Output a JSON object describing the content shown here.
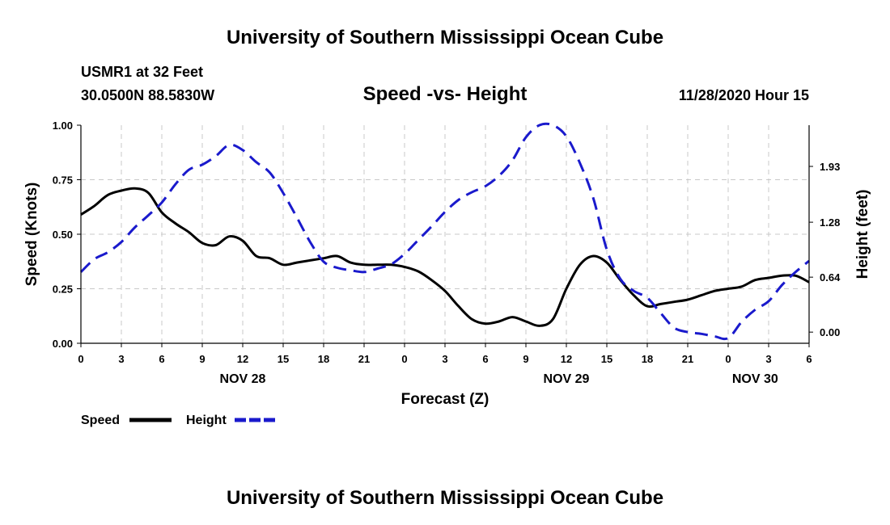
{
  "header": {
    "title": "University of Southern Mississippi Ocean Cube",
    "station": "USMR1 at 32 Feet",
    "coords": "30.0500N 88.5830W",
    "chart_title": "Speed -vs- Height",
    "datetime": "11/28/2020 Hour 15"
  },
  "footer": {
    "title": "University of Southern Mississippi Ocean Cube"
  },
  "colors": {
    "speed": "#000000",
    "height": "#1a1acc",
    "grid": "#c8c8c8"
  },
  "chart_data": {
    "type": "line",
    "title": "Speed -vs- Height",
    "xlabel": "Forecast (Z)",
    "ylabel": "Speed (Knots)",
    "y2label": "Height (feet)",
    "x_range": [
      0,
      54
    ],
    "x_tick_labels": [
      "0",
      "3",
      "6",
      "9",
      "12",
      "15",
      "18",
      "21",
      "0",
      "3",
      "6",
      "9",
      "12",
      "15",
      "18",
      "21",
      "0",
      "3",
      "6"
    ],
    "date_labels": [
      {
        "label": "NOV 28",
        "hour": 12
      },
      {
        "label": "NOV 29",
        "hour": 36
      },
      {
        "label": "NOV 30",
        "hour": 50
      }
    ],
    "ylim": [
      0,
      1
    ],
    "y_ticks": [
      "0.00",
      "0.25",
      "0.50",
      "0.75",
      "1.00"
    ],
    "y2lim": [
      -0.13,
      2.41
    ],
    "y2_ticks": [
      "0.00",
      "0.64",
      "1.28",
      "1.93"
    ],
    "grid": true,
    "legend": [
      {
        "name": "Speed",
        "style": "solid"
      },
      {
        "name": "Height",
        "style": "dashed"
      }
    ],
    "series": [
      {
        "name": "Speed",
        "axis": "left",
        "style": "solid",
        "x": [
          0,
          1,
          2,
          3,
          4,
          5,
          6,
          7,
          8,
          9,
          10,
          11,
          12,
          13,
          14,
          15,
          16,
          17,
          18,
          19,
          20,
          21,
          22,
          23,
          24,
          25,
          26,
          27,
          28,
          29,
          30,
          31,
          32,
          33,
          34,
          35,
          36,
          37,
          38,
          39,
          40,
          41,
          42,
          43,
          44,
          45,
          46,
          47,
          48,
          49,
          50,
          51,
          52,
          53,
          54
        ],
        "values": [
          0.59,
          0.63,
          0.68,
          0.7,
          0.71,
          0.69,
          0.6,
          0.55,
          0.51,
          0.46,
          0.45,
          0.49,
          0.47,
          0.4,
          0.39,
          0.36,
          0.37,
          0.38,
          0.39,
          0.4,
          0.37,
          0.36,
          0.36,
          0.36,
          0.35,
          0.33,
          0.29,
          0.24,
          0.17,
          0.11,
          0.09,
          0.1,
          0.12,
          0.1,
          0.08,
          0.11,
          0.25,
          0.36,
          0.4,
          0.37,
          0.29,
          0.22,
          0.17,
          0.18,
          0.19,
          0.2,
          0.22,
          0.24,
          0.25,
          0.26,
          0.29,
          0.3,
          0.31,
          0.31,
          0.28
        ]
      },
      {
        "name": "Height",
        "axis": "right",
        "style": "dashed",
        "x": [
          0,
          1,
          2,
          3,
          4,
          5,
          6,
          7,
          8,
          9,
          10,
          11,
          12,
          13,
          14,
          15,
          16,
          17,
          18,
          19,
          20,
          21,
          22,
          23,
          24,
          25,
          26,
          27,
          28,
          29,
          30,
          31,
          32,
          33,
          34,
          35,
          36,
          37,
          38,
          39,
          40,
          41,
          42,
          43,
          44,
          45,
          46,
          47,
          48,
          49,
          50,
          51,
          52,
          53,
          54
        ],
        "values": [
          0.7,
          0.85,
          0.93,
          1.05,
          1.22,
          1.36,
          1.51,
          1.72,
          1.89,
          1.95,
          2.05,
          2.18,
          2.12,
          1.98,
          1.86,
          1.62,
          1.34,
          1.05,
          0.82,
          0.75,
          0.72,
          0.7,
          0.74,
          0.79,
          0.91,
          1.07,
          1.23,
          1.4,
          1.54,
          1.63,
          1.7,
          1.82,
          2.0,
          2.27,
          2.41,
          2.41,
          2.28,
          1.97,
          1.56,
          0.96,
          0.62,
          0.48,
          0.4,
          0.22,
          0.05,
          0.0,
          -0.02,
          -0.05,
          -0.07,
          0.12,
          0.26,
          0.36,
          0.55,
          0.7,
          0.83
        ]
      }
    ]
  }
}
